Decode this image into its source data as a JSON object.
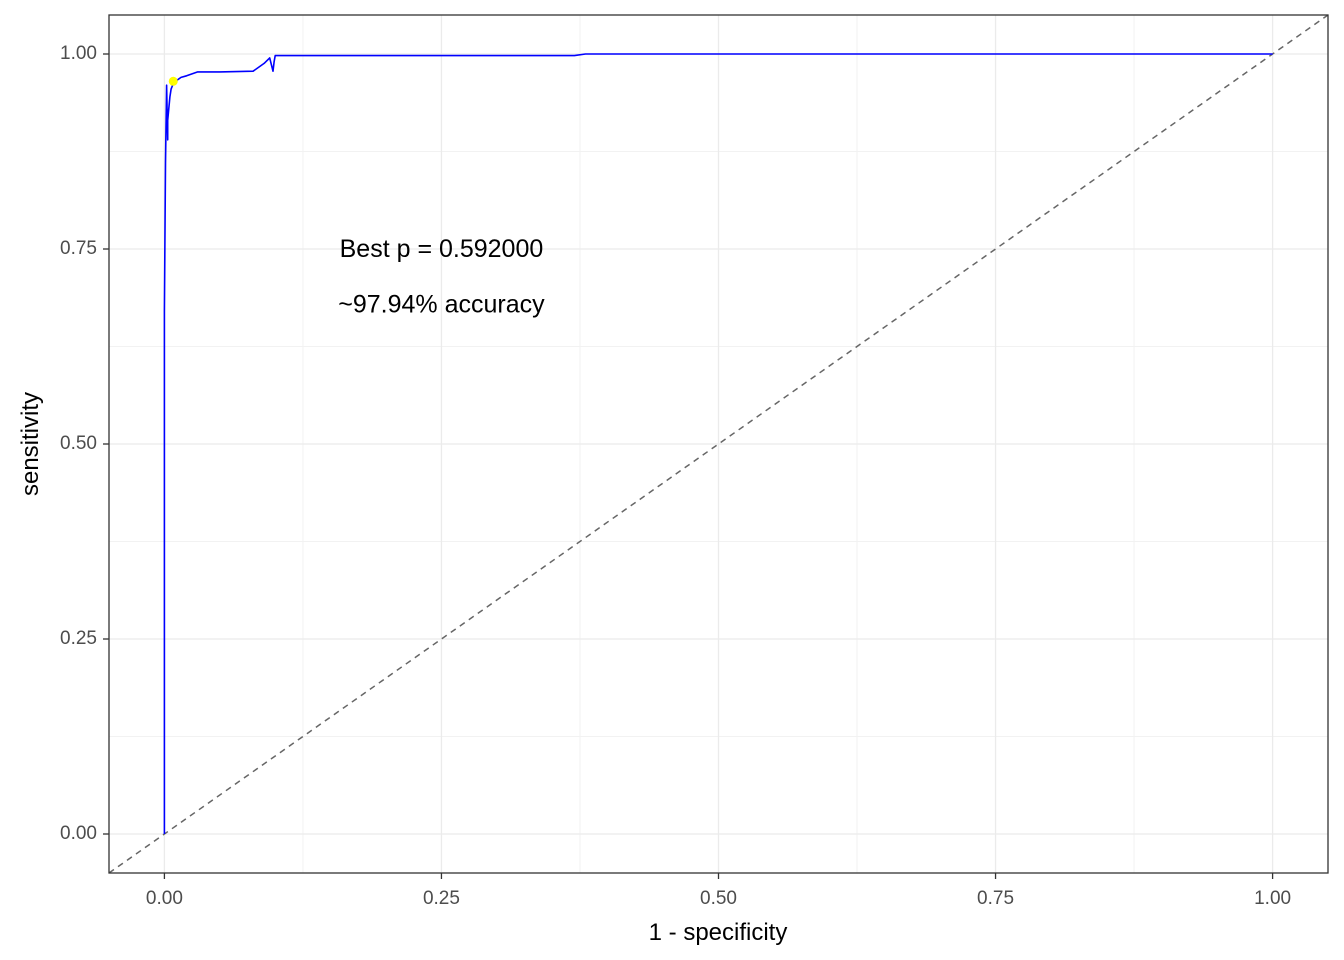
{
  "chart_data": {
    "type": "line",
    "title": "",
    "xlabel": "1 - specificity",
    "ylabel": "sensitivity",
    "xlim": [
      -0.05,
      1.05
    ],
    "ylim": [
      -0.05,
      1.05
    ],
    "grid": true,
    "x_ticks": [
      0.0,
      0.25,
      0.5,
      0.75,
      1.0
    ],
    "y_ticks": [
      0.0,
      0.25,
      0.5,
      0.75,
      1.0
    ],
    "x_tick_labels": [
      "0.00",
      "0.25",
      "0.50",
      "0.75",
      "1.00"
    ],
    "y_tick_labels": [
      "0.00",
      "0.25",
      "0.50",
      "0.75",
      "1.00"
    ],
    "series": [
      {
        "type": "line",
        "color": "#0000ff",
        "x": [
          0.0,
          0.0,
          0.001,
          0.002,
          0.003,
          0.003,
          0.004,
          0.005,
          0.006,
          0.008,
          0.01,
          0.015,
          0.02,
          0.03,
          0.05,
          0.08,
          0.09,
          0.095,
          0.098,
          0.099,
          0.1,
          0.15,
          0.2,
          0.3,
          0.37,
          0.38,
          0.4,
          0.6,
          0.8,
          1.0
        ],
        "y": [
          0.0,
          0.67,
          0.86,
          0.96,
          0.89,
          0.915,
          0.93,
          0.945,
          0.955,
          0.962,
          0.965,
          0.97,
          0.972,
          0.977,
          0.977,
          0.978,
          0.988,
          0.995,
          0.978,
          0.99,
          0.998,
          0.998,
          0.998,
          0.998,
          0.998,
          1.0,
          1.0,
          1.0,
          1.0,
          1.0
        ]
      },
      {
        "type": "reference",
        "style": "dashed",
        "color": "#666666",
        "x": [
          -0.05,
          1.05
        ],
        "y": [
          -0.05,
          1.05
        ]
      }
    ],
    "points": [
      {
        "x": 0.008,
        "y": 0.965,
        "color": "#ffff00"
      }
    ],
    "annotations": [
      {
        "text": "Best p = 0.592000",
        "x": 0.25,
        "y": 0.748
      },
      {
        "text": "~97.94% accuracy",
        "x": 0.25,
        "y": 0.677
      }
    ]
  }
}
